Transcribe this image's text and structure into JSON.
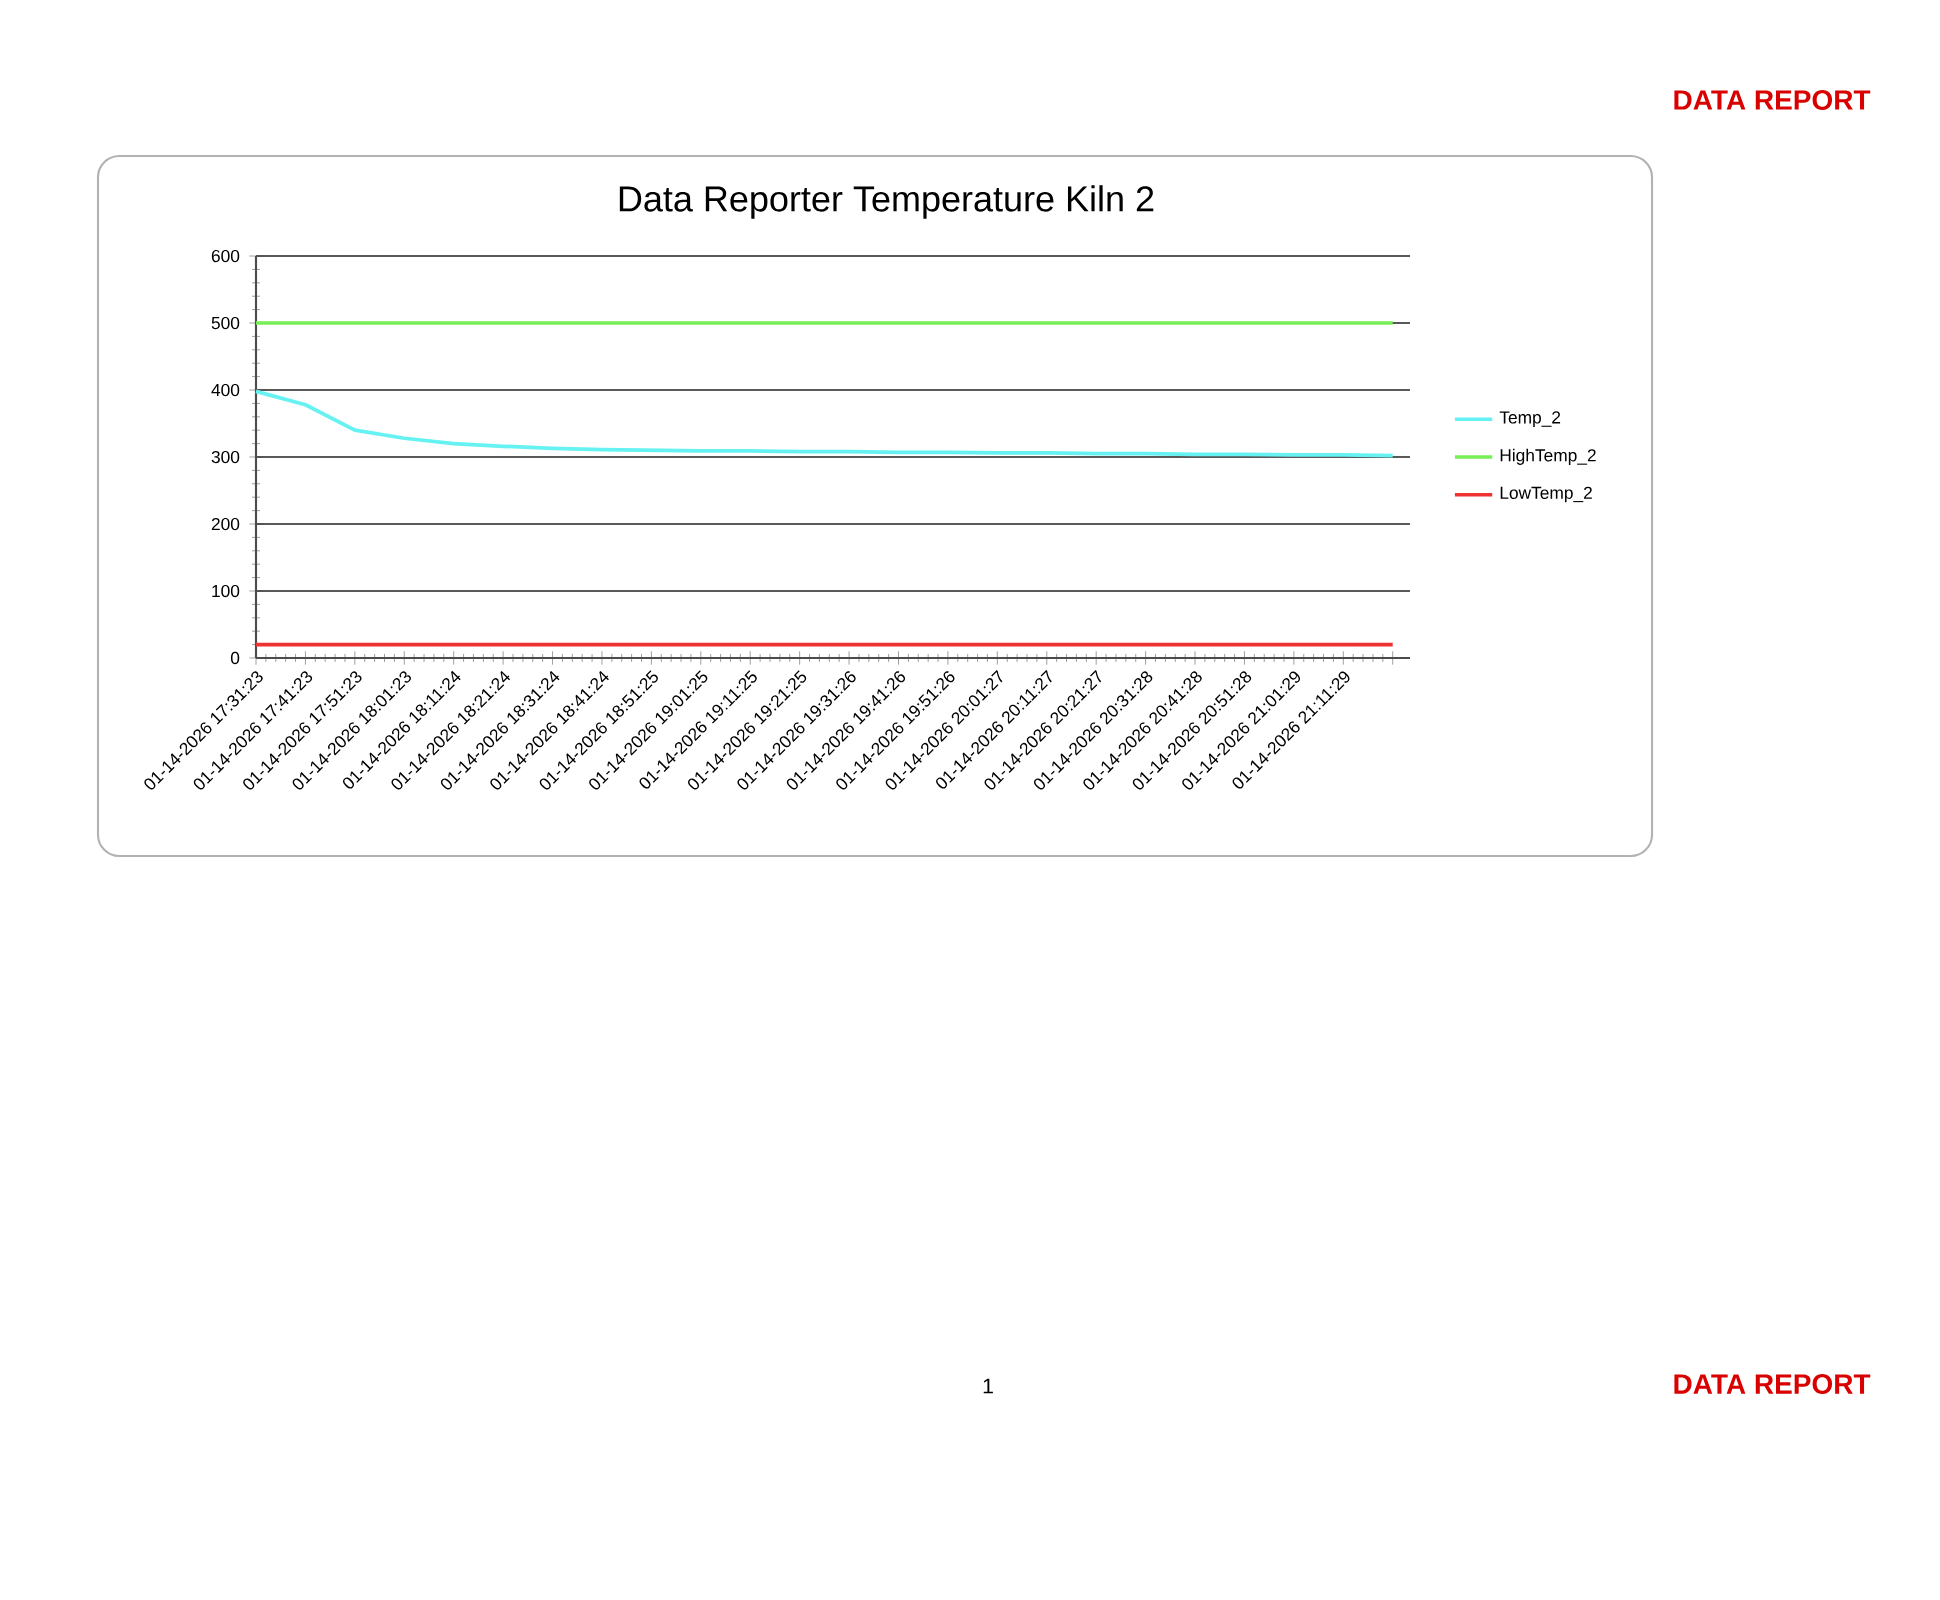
{
  "chart_data": {
    "type": "line",
    "title": "Data Reporter Temperature Kiln 2",
    "categories": [
      "01-14-2026 17:31:23",
      "01-14-2026 17:41:23",
      "01-14-2026 17:51:23",
      "01-14-2026 18:01:23",
      "01-14-2026 18:11:24",
      "01-14-2026 18:21:24",
      "01-14-2026 18:31:24",
      "01-14-2026 18:41:24",
      "01-14-2026 18:51:25",
      "01-14-2026 19:01:25",
      "01-14-2026 19:11:25",
      "01-14-2026 19:21:25",
      "01-14-2026 19:31:26",
      "01-14-2026 19:41:26",
      "01-14-2026 19:51:26",
      "01-14-2026 20:01:27",
      "01-14-2026 20:11:27",
      "01-14-2026 20:21:27",
      "01-14-2026 20:31:28",
      "01-14-2026 20:41:28",
      "01-14-2026 20:51:28",
      "01-14-2026 21:01:29",
      "01-14-2026 21:11:29",
      null
    ],
    "series": [
      {
        "name": "Temp_2",
        "color": "#66f2f2",
        "values": [
          398,
          378,
          340,
          328,
          320,
          316,
          313,
          311,
          310,
          309,
          309,
          308,
          308,
          307,
          307,
          306,
          306,
          305,
          305,
          304,
          304,
          303,
          303,
          302
        ]
      },
      {
        "name": "HighTemp_2",
        "color": "#77ee55",
        "values": [
          500,
          500,
          500,
          500,
          500,
          500,
          500,
          500,
          500,
          500,
          500,
          500,
          500,
          500,
          500,
          500,
          500,
          500,
          500,
          500,
          500,
          500,
          500,
          500
        ]
      },
      {
        "name": "LowTemp_2",
        "color": "#ee3333",
        "values": [
          20,
          20,
          20,
          20,
          20,
          20,
          20,
          20,
          20,
          20,
          20,
          20,
          20,
          20,
          20,
          20,
          20,
          20,
          20,
          20,
          20,
          20,
          20,
          20
        ]
      }
    ],
    "ylim": [
      0,
      600
    ],
    "yticks": [
      0,
      100,
      200,
      300,
      400,
      500,
      600
    ],
    "grid": "y",
    "legend": "right",
    "annotations": [
      "DATA REPORT",
      "1",
      "DATA REPORT"
    ]
  }
}
